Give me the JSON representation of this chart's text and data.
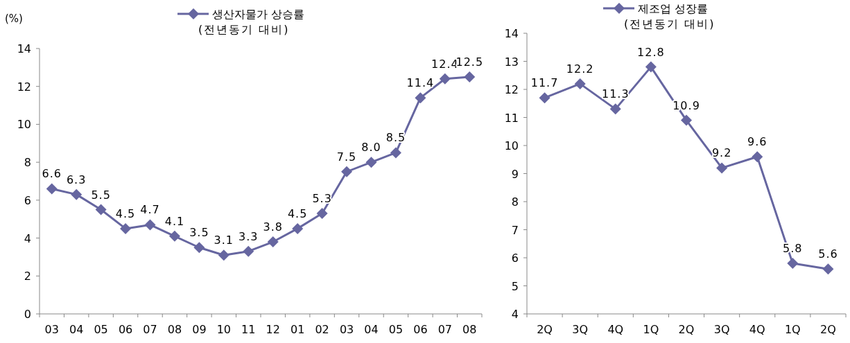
{
  "chart_data": [
    {
      "type": "line",
      "ylabel": "(%)",
      "categories": [
        "03",
        "04",
        "05",
        "06",
        "07",
        "08",
        "09",
        "10",
        "11",
        "12",
        "01",
        "02",
        "03",
        "04",
        "05",
        "06",
        "07",
        "08"
      ],
      "series": [
        {
          "name": "생산자물가 상승률 (전년동기 대비)",
          "color": "#6666a0",
          "values": [
            6.6,
            6.3,
            5.5,
            4.5,
            4.7,
            4.1,
            3.5,
            3.1,
            3.3,
            3.8,
            4.5,
            5.3,
            7.5,
            8.0,
            8.5,
            11.4,
            12.4,
            12.5
          ],
          "value_labels": [
            "6.6",
            "6.3",
            "5.5",
            "4.5",
            "4.7",
            "4.1",
            "3.5",
            "3.1",
            "3.3",
            "3.8",
            "4.5",
            "5.3",
            "7.5",
            "8.0",
            "8.5",
            "11.4",
            "12.4",
            "12.5"
          ]
        }
      ],
      "ylim": [
        0,
        14
      ],
      "yticks": [
        0,
        2,
        4,
        6,
        8,
        10,
        12,
        14
      ],
      "legend": "top",
      "marker": "diamond",
      "grid": false
    },
    {
      "type": "line",
      "categories": [
        "2Q",
        "3Q",
        "4Q",
        "1Q",
        "2Q",
        "3Q",
        "4Q",
        "1Q",
        "2Q"
      ],
      "series": [
        {
          "name": "제조업 성장률 (전년동기 대비)",
          "color": "#6666a0",
          "values": [
            11.7,
            12.2,
            11.3,
            12.8,
            10.9,
            9.2,
            9.6,
            5.8,
            5.6
          ],
          "value_labels": [
            "11.7",
            "12.2",
            "11.3",
            "12.8",
            "10.9",
            "9.2",
            "9.6",
            "5.8",
            "5.6"
          ]
        }
      ],
      "ylim": [
        4,
        14
      ],
      "yticks": [
        4,
        5,
        6,
        7,
        8,
        9,
        10,
        11,
        12,
        13,
        14
      ],
      "legend": "top",
      "marker": "diamond",
      "grid": false
    }
  ]
}
